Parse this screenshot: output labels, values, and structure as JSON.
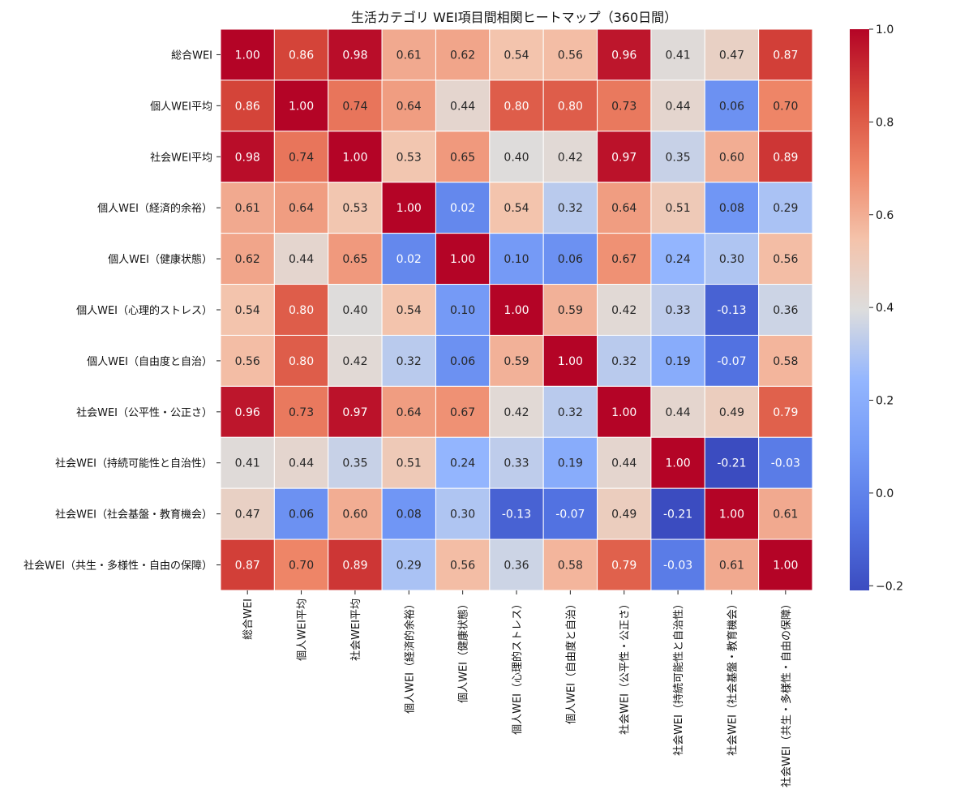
{
  "chart_data": {
    "type": "heatmap",
    "title": "生活カテゴリ WEI項目間相関ヒートマップ（360日間）",
    "labels": [
      "総合WEI",
      "個人WEI平均",
      "社会WEI平均",
      "個人WEI（経済的余裕）",
      "個人WEI（健康状態）",
      "個人WEI（心理的ストレス）",
      "個人WEI（自由度と自治）",
      "社会WEI（公平性・公正さ）",
      "社会WEI（持続可能性と自治性）",
      "社会WEI（社会基盤・教育機会）",
      "社会WEI（共生・多様性・自由の保障）"
    ],
    "matrix": [
      [
        1.0,
        0.86,
        0.98,
        0.61,
        0.62,
        0.54,
        0.56,
        0.96,
        0.41,
        0.47,
        0.87
      ],
      [
        0.86,
        1.0,
        0.74,
        0.64,
        0.44,
        0.8,
        0.8,
        0.73,
        0.44,
        0.06,
        0.7
      ],
      [
        0.98,
        0.74,
        1.0,
        0.53,
        0.65,
        0.4,
        0.42,
        0.97,
        0.35,
        0.6,
        0.89
      ],
      [
        0.61,
        0.64,
        0.53,
        1.0,
        0.02,
        0.54,
        0.32,
        0.64,
        0.51,
        0.08,
        0.29
      ],
      [
        0.62,
        0.44,
        0.65,
        0.02,
        1.0,
        0.1,
        0.06,
        0.67,
        0.24,
        0.3,
        0.56
      ],
      [
        0.54,
        0.8,
        0.4,
        0.54,
        0.1,
        1.0,
        0.59,
        0.42,
        0.33,
        -0.13,
        0.36
      ],
      [
        0.56,
        0.8,
        0.42,
        0.32,
        0.06,
        0.59,
        1.0,
        0.32,
        0.19,
        -0.07,
        0.58
      ],
      [
        0.96,
        0.73,
        0.97,
        0.64,
        0.67,
        0.42,
        0.32,
        1.0,
        0.44,
        0.49,
        0.79
      ],
      [
        0.41,
        0.44,
        0.35,
        0.51,
        0.24,
        0.33,
        0.19,
        0.44,
        1.0,
        -0.21,
        -0.03
      ],
      [
        0.47,
        0.06,
        0.6,
        0.08,
        0.3,
        -0.13,
        -0.07,
        0.49,
        -0.21,
        1.0,
        0.61
      ],
      [
        0.87,
        0.7,
        0.89,
        0.29,
        0.56,
        0.36,
        0.58,
        0.79,
        -0.03,
        0.61,
        1.0
      ]
    ],
    "colormap": "coolwarm",
    "vmin": -0.21,
    "vmax": 1.0,
    "colorbar_ticks": [
      1.0,
      0.8,
      0.6,
      0.4,
      0.2,
      0.0,
      -0.2
    ],
    "colorbar_tick_labels": [
      "1.0",
      "0.8",
      "0.6",
      "0.4",
      "0.2",
      "0.0",
      "−0.2"
    ],
    "value_format": "2 decimals",
    "xlabel": "",
    "ylabel": ""
  }
}
